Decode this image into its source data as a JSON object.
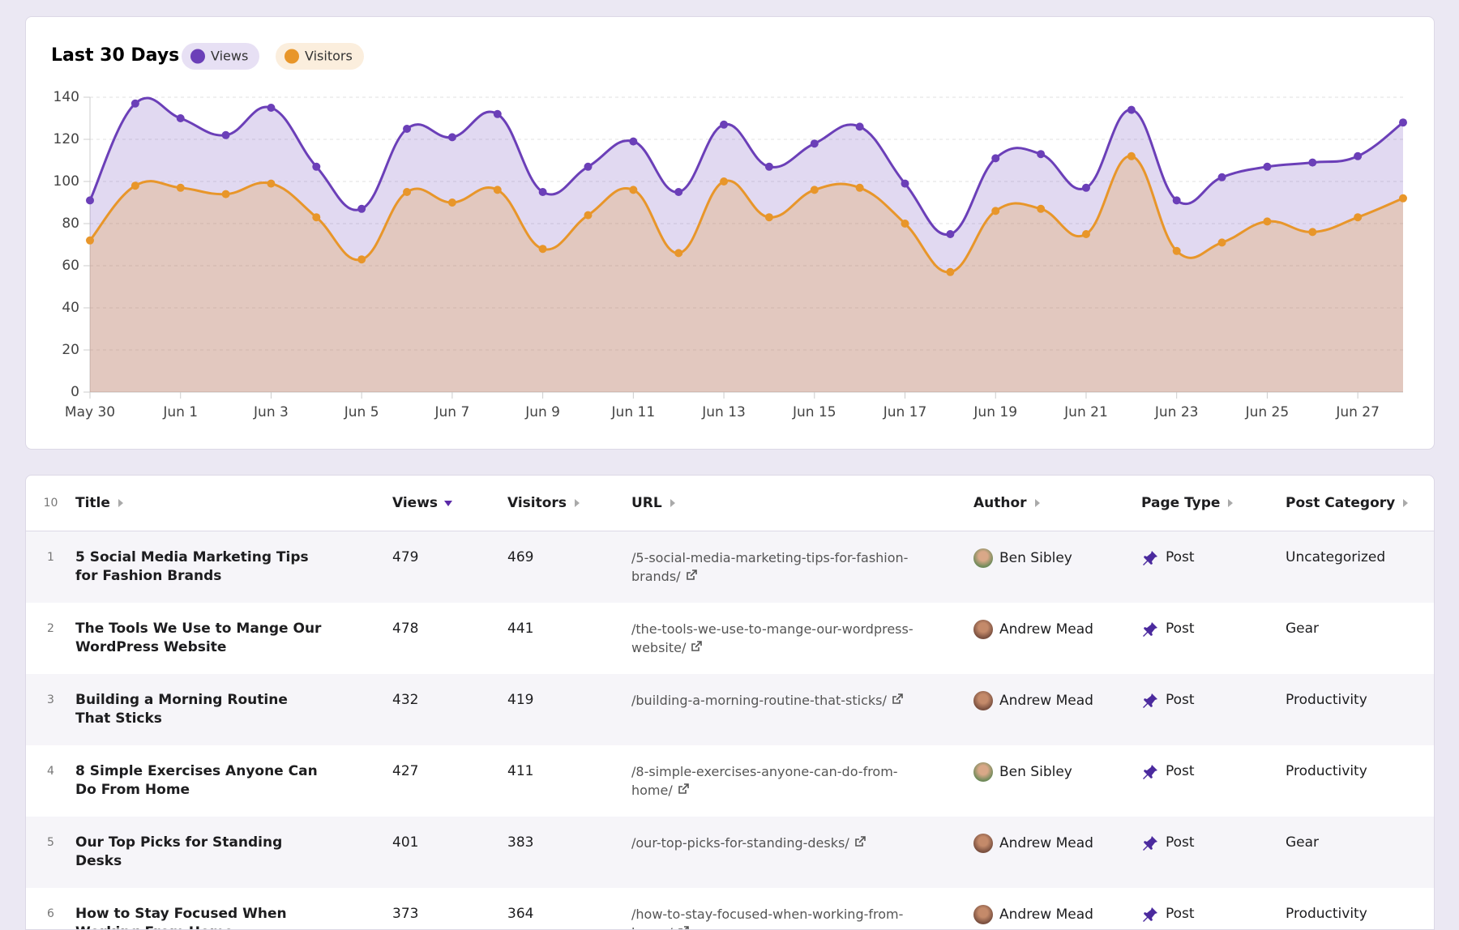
{
  "chart_data": {
    "type": "line",
    "title": "Last 30 Days",
    "categories": [
      "May 30",
      null,
      "Jun 1",
      null,
      "Jun 3",
      null,
      "Jun 5",
      null,
      "Jun 7",
      null,
      "Jun 9",
      null,
      "Jun 11",
      null,
      "Jun 13",
      null,
      "Jun 15",
      null,
      "Jun 17",
      null,
      "Jun 19",
      null,
      "Jun 21",
      null,
      "Jun 23",
      null,
      "Jun 25",
      null,
      "Jun 27",
      null
    ],
    "series": [
      {
        "name": "Views",
        "color": "#6b3fb8",
        "values": [
          91,
          137,
          130,
          122,
          135,
          107,
          87,
          125,
          121,
          132,
          95,
          107,
          119,
          95,
          127,
          107,
          118,
          126,
          99,
          75,
          111,
          113,
          97,
          134,
          91,
          102,
          107,
          109,
          112,
          128
        ]
      },
      {
        "name": "Visitors",
        "color": "#e8962a",
        "values": [
          72,
          98,
          97,
          94,
          99,
          83,
          63,
          95,
          90,
          96,
          68,
          84,
          96,
          66,
          100,
          83,
          96,
          97,
          80,
          57,
          86,
          87,
          75,
          112,
          67,
          71,
          81,
          76,
          83,
          92
        ]
      }
    ],
    "ylim": [
      0,
      140
    ],
    "yticks": [
      0,
      20,
      40,
      60,
      80,
      100,
      120,
      140
    ],
    "grid": true
  },
  "table": {
    "page_size": 10,
    "columns": [
      "Title",
      "Views",
      "Visitors",
      "URL",
      "Author",
      "Page Type",
      "Post Category"
    ],
    "rows": [
      [
        1,
        "5 Social Media Marketing Tips for Fashion Brands",
        479,
        469,
        "/5-social-media-marketing-tips-for-fashion-brands/",
        "Ben Sibley",
        "Post",
        "Uncategorized"
      ],
      [
        2,
        "The Tools We Use to Mange Our WordPress Website",
        478,
        441,
        "/the-tools-we-use-to-mange-our-wordpress-website/",
        "Andrew Mead",
        "Post",
        "Gear"
      ],
      [
        3,
        "Building a Morning Routine That Sticks",
        432,
        419,
        "/building-a-morning-routine-that-sticks/",
        "Andrew Mead",
        "Post",
        "Productivity"
      ],
      [
        4,
        "8 Simple Exercises Anyone Can Do From Home",
        427,
        411,
        "/8-simple-exercises-anyone-can-do-from-home/",
        "Ben Sibley",
        "Post",
        "Productivity"
      ],
      [
        5,
        "Our Top Picks for Standing Desks",
        401,
        383,
        "/our-top-picks-for-standing-desks/",
        "Andrew Mead",
        "Post",
        "Gear"
      ],
      [
        6,
        "How to Stay Focused When Working From Home",
        373,
        364,
        "/how-to-stay-focused-when-working-from-home/",
        "Andrew Mead",
        "Post",
        "Productivity"
      ]
    ]
  }
}
